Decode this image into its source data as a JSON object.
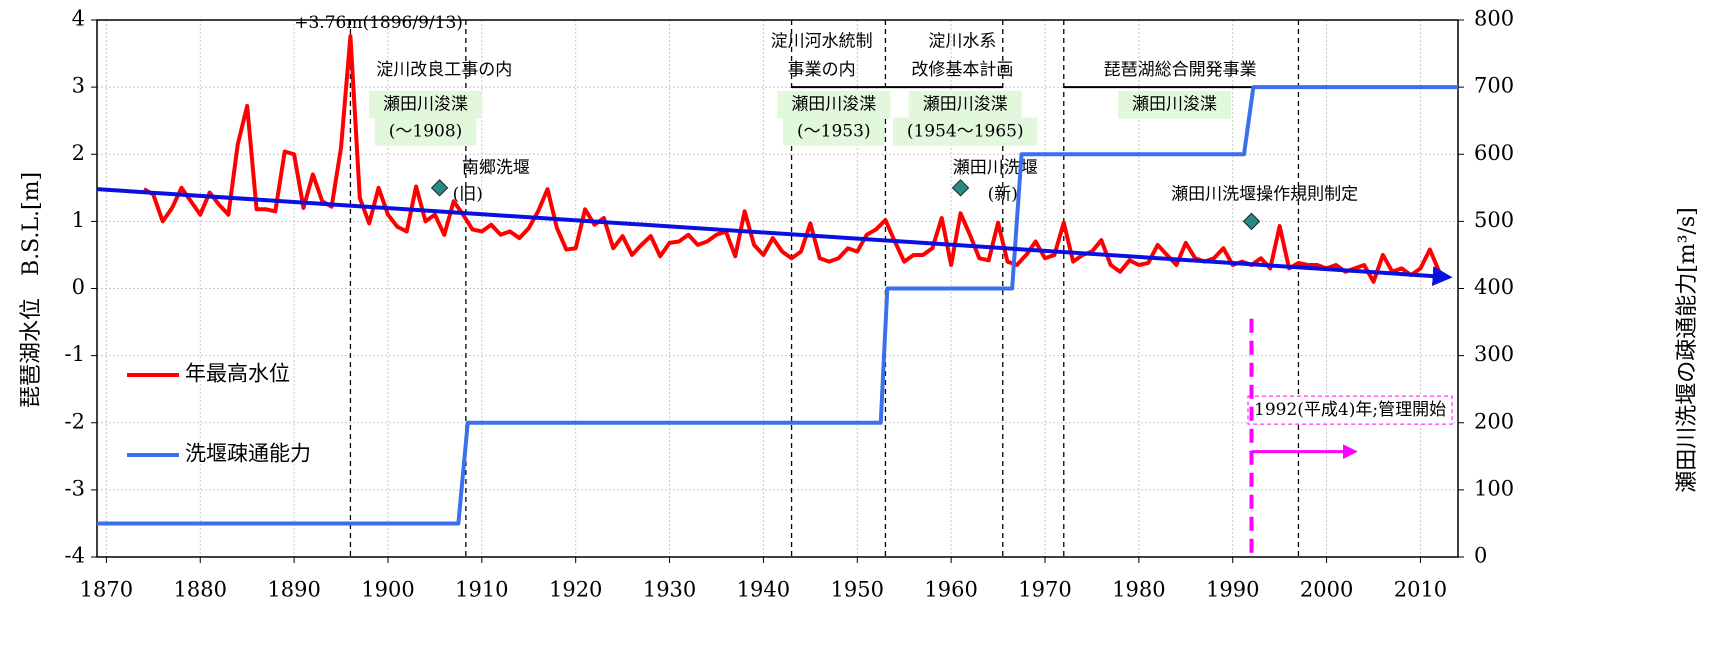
{
  "chart_data": {
    "type": "line",
    "y_label": "琵琶湖水位　B.S.L.[m]",
    "y2_label": "瀬田川洗堰の疎通能力[m³/s]",
    "xlim": [
      1869,
      2014
    ],
    "xticks": [
      1870,
      1880,
      1890,
      1900,
      1910,
      1920,
      1930,
      1940,
      1950,
      1960,
      1970,
      1980,
      1990,
      2000,
      2010
    ],
    "ylim": [
      -4,
      4
    ],
    "yticks": [
      -4,
      -3,
      -2,
      -1,
      0,
      1,
      2,
      3,
      4
    ],
    "y2lim": [
      0,
      800
    ],
    "y2ticks": [
      0,
      100,
      200,
      300,
      400,
      500,
      600,
      700,
      800
    ],
    "grid": true,
    "legend": "lower left",
    "series": [
      {
        "name": "年最高水位",
        "color": "#ff0000",
        "x": [
          1874,
          1875,
          1876,
          1877,
          1878,
          1879,
          1880,
          1881,
          1882,
          1883,
          1884,
          1885,
          1886,
          1887,
          1888,
          1889,
          1890,
          1891,
          1892,
          1893,
          1894,
          1895,
          1896,
          1897,
          1898,
          1899,
          1900,
          1901,
          1902,
          1903,
          1904,
          1905,
          1906,
          1907,
          1908,
          1909,
          1910,
          1911,
          1912,
          1913,
          1914,
          1915,
          1916,
          1917,
          1918,
          1919,
          1920,
          1921,
          1922,
          1923,
          1924,
          1925,
          1926,
          1927,
          1928,
          1929,
          1930,
          1931,
          1932,
          1933,
          1934,
          1935,
          1936,
          1937,
          1938,
          1939,
          1940,
          1941,
          1942,
          1943,
          1944,
          1945,
          1946,
          1947,
          1948,
          1949,
          1950,
          1951,
          1952,
          1953,
          1954,
          1955,
          1956,
          1957,
          1958,
          1959,
          1960,
          1961,
          1962,
          1963,
          1964,
          1965,
          1966,
          1967,
          1968,
          1969,
          1970,
          1971,
          1972,
          1973,
          1974,
          1975,
          1976,
          1977,
          1978,
          1979,
          1980,
          1981,
          1982,
          1983,
          1984,
          1985,
          1986,
          1987,
          1988,
          1989,
          1990,
          1991,
          1992,
          1993,
          1994,
          1995,
          1996,
          1997,
          1998,
          1999,
          2000,
          2001,
          2002,
          2003,
          2004,
          2005,
          2006,
          2007,
          2008,
          2009,
          2010,
          2011,
          2012
        ],
        "values": [
          1.48,
          1.4,
          1.0,
          1.2,
          1.5,
          1.3,
          1.1,
          1.43,
          1.25,
          1.1,
          2.15,
          2.72,
          1.18,
          1.18,
          1.15,
          2.04,
          2.0,
          1.2,
          1.7,
          1.3,
          1.22,
          2.1,
          3.76,
          1.35,
          0.97,
          1.5,
          1.1,
          0.92,
          0.85,
          1.52,
          1.0,
          1.1,
          0.8,
          1.3,
          1.1,
          0.88,
          0.85,
          0.95,
          0.8,
          0.85,
          0.75,
          0.9,
          1.15,
          1.48,
          0.9,
          0.58,
          0.6,
          1.18,
          0.95,
          1.05,
          0.6,
          0.78,
          0.5,
          0.65,
          0.78,
          0.48,
          0.68,
          0.7,
          0.8,
          0.65,
          0.7,
          0.8,
          0.85,
          0.48,
          1.15,
          0.65,
          0.5,
          0.75,
          0.55,
          0.45,
          0.55,
          0.97,
          0.45,
          0.4,
          0.45,
          0.6,
          0.55,
          0.8,
          0.88,
          1.02,
          0.7,
          0.4,
          0.5,
          0.5,
          0.6,
          1.05,
          0.35,
          1.12,
          0.8,
          0.45,
          0.42,
          0.98,
          0.4,
          0.35,
          0.5,
          0.7,
          0.45,
          0.5,
          0.98,
          0.4,
          0.5,
          0.55,
          0.72,
          0.35,
          0.25,
          0.42,
          0.35,
          0.38,
          0.65,
          0.5,
          0.35,
          0.68,
          0.45,
          0.4,
          0.45,
          0.6,
          0.35,
          0.4,
          0.35,
          0.45,
          0.3,
          0.93,
          0.3,
          0.38,
          0.35,
          0.35,
          0.3,
          0.35,
          0.25,
          0.3,
          0.35,
          0.1,
          0.5,
          0.25,
          0.3,
          0.2,
          0.3,
          0.58,
          0.25
        ]
      },
      {
        "name": "洗堰疎通能力",
        "color": "#3a6ff0",
        "axis": "y2",
        "x": [
          1869,
          1907.5,
          1908.5,
          1952.5,
          1953.2,
          1966.5,
          1967.5,
          1991.2,
          1992.2,
          2014
        ],
        "values": [
          50,
          50,
          200,
          200,
          400,
          400,
          600,
          600,
          700,
          700
        ]
      }
    ],
    "trend": {
      "color": "#0a10e0",
      "x": [
        1869,
        2013
      ],
      "values": [
        1.48,
        0.17
      ]
    },
    "vlines": [
      1896,
      1908.3,
      1943,
      1953,
      1965.5,
      1972,
      1997
    ],
    "period_lines": {
      "y": 3.0,
      "ranges": [
        [
          1943,
          1965.5
        ],
        [
          1972,
          1997
        ]
      ]
    },
    "markers": {
      "color": "#2a8a82",
      "x": [
        1905.5,
        1961,
        1992
      ],
      "values": [
        1.5,
        1.5,
        1.0
      ]
    },
    "management": {
      "color": "#ff00ff",
      "x": 1992,
      "y_range": [
        -0.45,
        -4
      ],
      "arrow": {
        "x": [
          1992,
          2003
        ],
        "y": -2.43
      }
    },
    "annotations": [
      {
        "text": "+3.76m(1896/9/13)",
        "x": 1899,
        "y": 3.95
      },
      {
        "text": "淀川改良工事の内",
        "x": 1906,
        "y": 3.25
      },
      {
        "text": "瀬田川浚渫",
        "x": 1904,
        "y": 2.73,
        "bg": "#e2f8dc"
      },
      {
        "text": "(～1908)",
        "x": 1904,
        "y": 2.33,
        "bg": "#e2f8dc"
      },
      {
        "text": "南郷洗堰",
        "x": 1911.5,
        "y": 1.79
      },
      {
        "text": "(旧)",
        "x": 1908.5,
        "y": 1.39
      },
      {
        "text": "淀川河水統制",
        "x": 1946.2,
        "y": 3.67
      },
      {
        "text": "事業の内",
        "x": 1946.2,
        "y": 3.25
      },
      {
        "text": "淀川水系",
        "x": 1961.2,
        "y": 3.67
      },
      {
        "text": "改修基本計画",
        "x": 1961.2,
        "y": 3.25
      },
      {
        "text": "瀬田川浚渫",
        "x": 1947.5,
        "y": 2.73,
        "bg": "#e2f8dc"
      },
      {
        "text": "(～1953)",
        "x": 1947.5,
        "y": 2.33,
        "bg": "#e2f8dc"
      },
      {
        "text": "瀬田川浚渫",
        "x": 1961.5,
        "y": 2.73,
        "bg": "#e2f8dc"
      },
      {
        "text": "(1954～1965)",
        "x": 1961.5,
        "y": 2.33,
        "bg": "#e2f8dc"
      },
      {
        "text": "琵琶湖総合開発事業",
        "x": 1984.4,
        "y": 3.25
      },
      {
        "text": "瀬田川浚渫",
        "x": 1983.8,
        "y": 2.73,
        "bg": "#e2f8dc"
      },
      {
        "text": "瀬田川洗堰",
        "x": 1964.7,
        "y": 1.79
      },
      {
        "text": "(新)",
        "x": 1965.5,
        "y": 1.39
      },
      {
        "text": "瀬田川洗堰操作規則制定",
        "x": 1993.4,
        "y": 1.39
      },
      {
        "text": "1992(平成4)年;管理開始",
        "x": 2002.5,
        "y": -1.82,
        "box": "#ff00ff"
      }
    ]
  }
}
